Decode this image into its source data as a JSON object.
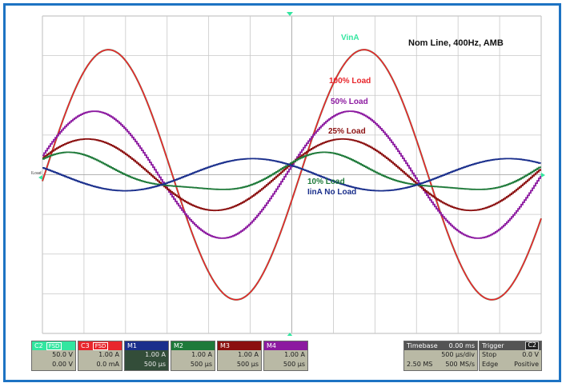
{
  "plot": {
    "title": "Nom Line, 400Hz, AMB",
    "bg_color": "#ffffff",
    "grid_color": "#c8c8c8",
    "left_marker": "ILoad"
  },
  "traces": [
    {
      "name": "VinA",
      "color": "#33e6a0",
      "amplitude": 3.15,
      "noise": 0.0,
      "step": 1
    },
    {
      "name": "100% Load",
      "color": "#e8262c",
      "amplitude": 3.15,
      "noise": 0.0,
      "step": 1
    },
    {
      "name": "50% Load",
      "color": "#8c1aa0",
      "amplitude": 1.6,
      "noise": 0.02,
      "step": 2
    },
    {
      "name": "25% Load",
      "color": "#8b1010",
      "amplitude": 0.9,
      "noise": 0.02,
      "step": 2
    },
    {
      "name": "10% Load",
      "color": "#1f7a3a",
      "amplitude": 0.45,
      "noise": 0.02,
      "step": 2
    },
    {
      "name": "IinA No Load",
      "color": "#1a2f8c",
      "amplitude": 0.45,
      "noise": 0.02,
      "step": 2
    }
  ],
  "channels": [
    {
      "tag": "C2",
      "fsd": "FSD",
      "color": "#33e6a0",
      "line1": "50.0 V",
      "line2": "0.00 V"
    },
    {
      "tag": "C3",
      "fsd": "FSD",
      "color": "#e8262c",
      "line1": "1.00 A",
      "line2": "0.0 mA"
    },
    {
      "tag": "M1",
      "fsd": "",
      "color": "#1a2f8c",
      "line1": "1.00 A",
      "line2": "500 µs"
    },
    {
      "tag": "M2",
      "fsd": "",
      "color": "#1f7a3a",
      "line1": "1.00 A",
      "line2": "500 µs"
    },
    {
      "tag": "M3",
      "fsd": "",
      "color": "#8b1010",
      "line1": "1.00 A",
      "line2": "500 µs"
    },
    {
      "tag": "M4",
      "fsd": "",
      "color": "#8c1aa0",
      "line1": "1.00 A",
      "line2": "500 µs"
    }
  ],
  "timebase": {
    "label": "Timebase",
    "offset": "0.00 ms",
    "per_div": "500 µs/div",
    "samples": "2.50 MS",
    "rate": "500 MS/s"
  },
  "trigger": {
    "label": "Trigger",
    "channel": "C2",
    "mode": "Stop",
    "level": "0.0 V",
    "type": "Edge",
    "slope": "Positive"
  }
}
